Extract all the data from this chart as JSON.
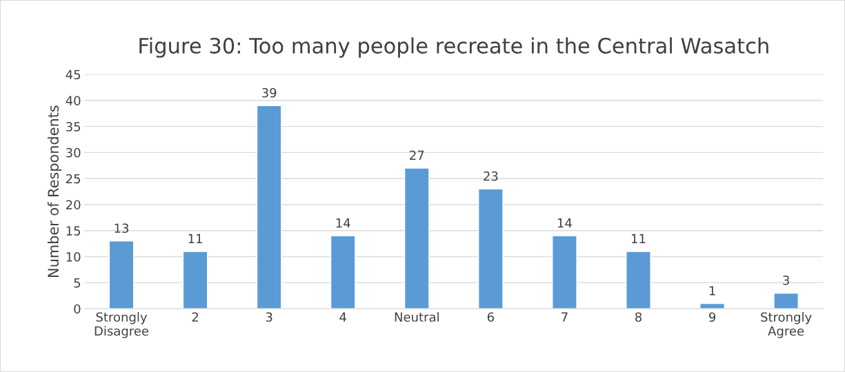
{
  "chart_data": {
    "type": "bar",
    "title": "Figure 30: Too many people recreate in the Central Wasatch",
    "ylabel": "Number of Respondents",
    "categories": [
      "Strongly\nDisagree",
      "2",
      "3",
      "4",
      "Neutral",
      "6",
      "7",
      "8",
      "9",
      "Strongly\nAgree"
    ],
    "values": [
      13,
      11,
      39,
      14,
      27,
      23,
      14,
      11,
      1,
      3
    ],
    "color": "#5b9bd5",
    "ylim": [
      0,
      45
    ],
    "yticks": [
      0,
      5,
      10,
      15,
      20,
      25,
      30,
      35,
      40,
      45
    ],
    "grid": "y",
    "data_labels": true,
    "legend": false
  }
}
